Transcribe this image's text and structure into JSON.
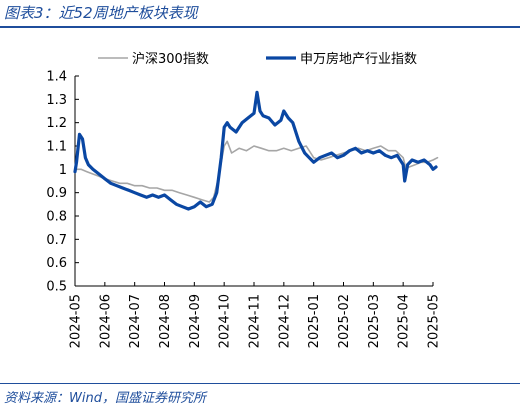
{
  "figure_title": "图表3：近52周地产板块表现",
  "source_text": "资料来源：Wind，国盛证券研究所",
  "chart_data": {
    "type": "line",
    "ylim": [
      0.5,
      1.4
    ],
    "yticks": [
      "0.5",
      "0.6",
      "0.7",
      "0.8",
      "0.9",
      "1",
      "1.1",
      "1.2",
      "1.3",
      "1.4"
    ],
    "x_range": [
      "2024-05",
      "2025-05"
    ],
    "xtick_labels": [
      "2024-05",
      "2024-06",
      "2024-07",
      "2024-08",
      "2024-09",
      "2024-10",
      "2024-11",
      "2024-12",
      "2025-01",
      "2025-02",
      "2025-03",
      "2025-04",
      "2025-05"
    ],
    "legend_position": "top",
    "grid": false,
    "series": [
      {
        "name": "沪深300指数",
        "color": "#a6a6a6",
        "x": [
          "2024-05",
          "2024-05.2",
          "2024-05.4",
          "2024-05.6",
          "2024-05.8",
          "2024-06",
          "2024-06.25",
          "2024-06.5",
          "2024-06.75",
          "2024-07",
          "2024-07.25",
          "2024-07.5",
          "2024-07.75",
          "2024-08",
          "2024-08.25",
          "2024-08.5",
          "2024-08.75",
          "2024-09",
          "2024-09.25",
          "2024-09.5",
          "2024-09.65",
          "2024-09.8",
          "2024-10",
          "2024-10.1",
          "2024-10.25",
          "2024-10.5",
          "2024-10.75",
          "2024-11",
          "2024-11.25",
          "2024-11.5",
          "2024-11.75",
          "2024-12",
          "2024-12.25",
          "2024-12.5",
          "2024-12.75",
          "2025-01",
          "2025-01.25",
          "2025-01.5",
          "2025-01.75",
          "2025-02",
          "2025-02.25",
          "2025-02.5",
          "2025-02.75",
          "2025-03",
          "2025-03.25",
          "2025-03.5",
          "2025-03.75",
          "2025-04",
          "2025-04.1",
          "2025-04.2",
          "2025-04.4",
          "2025-04.6",
          "2025-04.8",
          "2025-05",
          "2025-05.15"
        ],
        "values": [
          1.0,
          1.0,
          0.99,
          0.98,
          0.97,
          0.96,
          0.95,
          0.94,
          0.94,
          0.93,
          0.93,
          0.92,
          0.92,
          0.91,
          0.91,
          0.9,
          0.89,
          0.88,
          0.87,
          0.86,
          0.88,
          0.96,
          1.1,
          1.12,
          1.07,
          1.09,
          1.08,
          1.1,
          1.09,
          1.08,
          1.08,
          1.09,
          1.08,
          1.09,
          1.1,
          1.05,
          1.04,
          1.05,
          1.06,
          1.07,
          1.08,
          1.09,
          1.08,
          1.09,
          1.1,
          1.08,
          1.08,
          1.05,
          1.0,
          1.01,
          1.02,
          1.03,
          1.03,
          1.04,
          1.05
        ]
      },
      {
        "name": "申万房地产行业指数",
        "color": "#0a47a3",
        "x": [
          "2024-05",
          "2024-05.05",
          "2024-05.15",
          "2024-05.25",
          "2024-05.35",
          "2024-05.45",
          "2024-05.6",
          "2024-05.8",
          "2024-06",
          "2024-06.2",
          "2024-06.4",
          "2024-06.6",
          "2024-06.8",
          "2024-07",
          "2024-07.2",
          "2024-07.4",
          "2024-07.6",
          "2024-07.8",
          "2024-08",
          "2024-08.2",
          "2024-08.4",
          "2024-08.6",
          "2024-08.8",
          "2024-09",
          "2024-09.2",
          "2024-09.4",
          "2024-09.6",
          "2024-09.75",
          "2024-09.9",
          "2024-10",
          "2024-10.1",
          "2024-10.2",
          "2024-10.4",
          "2024-10.6",
          "2024-10.8",
          "2024-11",
          "2024-11.1",
          "2024-11.2",
          "2024-11.3",
          "2024-11.5",
          "2024-11.7",
          "2024-11.9",
          "2024-12",
          "2024-12.15",
          "2024-12.3",
          "2024-12.5",
          "2024-12.7",
          "2024-12.85",
          "2025-01",
          "2025-01.2",
          "2025-01.4",
          "2025-01.6",
          "2025-01.8",
          "2025-02",
          "2025-02.2",
          "2025-02.4",
          "2025-02.6",
          "2025-02.8",
          "2025-03",
          "2025-03.2",
          "2025-03.4",
          "2025-03.6",
          "2025-03.8",
          "2025-04",
          "2025-04.05",
          "2025-04.15",
          "2025-04.3",
          "2025-04.5",
          "2025-04.7",
          "2025-04.9",
          "2025-05",
          "2025-05.1"
        ],
        "values": [
          0.99,
          1.03,
          1.15,
          1.13,
          1.05,
          1.02,
          1.0,
          0.98,
          0.96,
          0.94,
          0.93,
          0.92,
          0.91,
          0.9,
          0.89,
          0.88,
          0.89,
          0.88,
          0.89,
          0.87,
          0.85,
          0.84,
          0.83,
          0.84,
          0.86,
          0.84,
          0.85,
          0.9,
          1.05,
          1.18,
          1.2,
          1.18,
          1.16,
          1.2,
          1.22,
          1.24,
          1.33,
          1.25,
          1.23,
          1.22,
          1.19,
          1.21,
          1.25,
          1.22,
          1.2,
          1.12,
          1.07,
          1.05,
          1.03,
          1.05,
          1.06,
          1.07,
          1.05,
          1.06,
          1.08,
          1.09,
          1.07,
          1.08,
          1.07,
          1.08,
          1.06,
          1.05,
          1.06,
          1.02,
          0.95,
          1.02,
          1.04,
          1.03,
          1.04,
          1.02,
          1.0,
          1.01
        ]
      }
    ]
  }
}
